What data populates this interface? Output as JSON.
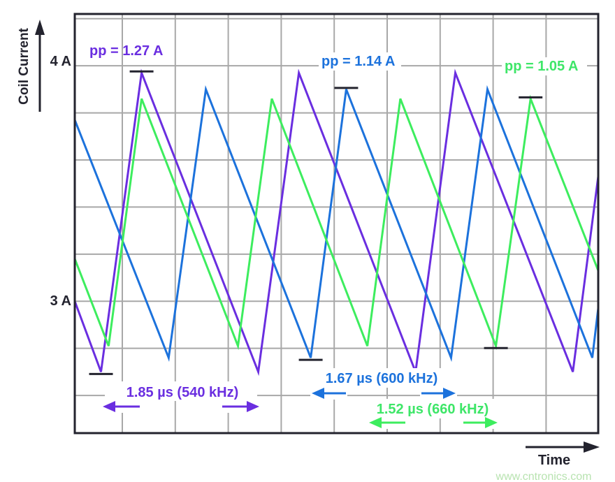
{
  "chart_data": {
    "type": "line",
    "title": "",
    "xlabel": "Time",
    "ylabel": "Coil Current",
    "y_ticks": [
      {
        "value": 4.0,
        "label": "4 A"
      },
      {
        "value": 3.0,
        "label": "3 A"
      }
    ],
    "xlim": [
      0,
      6.19
    ],
    "ylim": [
      2.44,
      4.22
    ],
    "grid": true,
    "legend": "none",
    "series": [
      {
        "key": "purple",
        "color": "#6a2ee0",
        "pp_label": "pp = 1.27 A",
        "period_label": "1.85 µs (540 kHz)",
        "max": 3.97,
        "min": 2.7,
        "points": [
          [
            0,
            3.0
          ],
          [
            0.31,
            2.7
          ],
          [
            0.79,
            3.97
          ],
          [
            2.17,
            2.7
          ],
          [
            2.65,
            3.97
          ],
          [
            4.03,
            2.7
          ],
          [
            4.5,
            3.97
          ],
          [
            5.89,
            2.7
          ],
          [
            6.19,
            3.53
          ]
        ]
      },
      {
        "key": "blue",
        "color": "#1c72dc",
        "pp_label": "pp = 1.14 A",
        "period_label": "1.67 µs (600 kHz)",
        "max": 3.9,
        "min": 2.76,
        "points": [
          [
            0,
            3.77
          ],
          [
            1.11,
            2.76
          ],
          [
            1.55,
            3.9
          ],
          [
            2.79,
            2.76
          ],
          [
            3.21,
            3.9
          ],
          [
            4.45,
            2.76
          ],
          [
            4.88,
            3.9
          ],
          [
            6.12,
            2.76
          ],
          [
            6.19,
            2.97
          ]
        ]
      },
      {
        "key": "green",
        "color": "#3ded5e",
        "pp_label": "pp = 1.05 A",
        "period_label": "1.52 µs (660 kHz)",
        "max": 3.86,
        "min": 2.81,
        "points": [
          [
            0,
            3.18
          ],
          [
            0.4,
            2.81
          ],
          [
            0.79,
            3.86
          ],
          [
            1.93,
            2.81
          ],
          [
            2.33,
            3.86
          ],
          [
            3.46,
            2.81
          ],
          [
            3.85,
            3.86
          ],
          [
            4.98,
            2.81
          ],
          [
            5.39,
            3.86
          ],
          [
            6.19,
            3.13
          ]
        ]
      }
    ]
  },
  "watermark": "www.cntronics.com",
  "colors": {
    "axis": "#23232e",
    "grid": "#a8a8a8"
  }
}
